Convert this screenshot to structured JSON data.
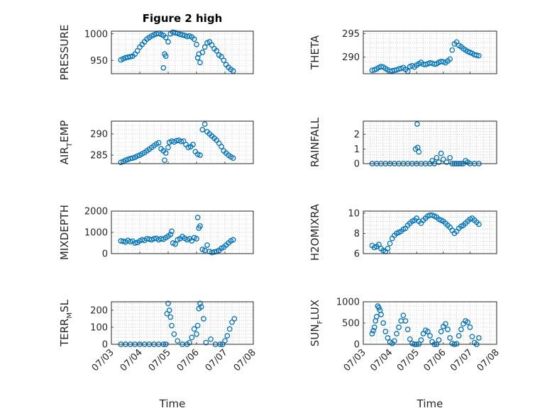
{
  "figure": {
    "title": "Figure 2 high",
    "marker_color": "#0072BD",
    "axis_color": "#262626",
    "grid_color": "#b0b0b0"
  },
  "chart_data": [
    {
      "type": "scatter",
      "marker": "open-circle",
      "ylabel": "PRESSURE",
      "xlim": [
        "07/03",
        "07/08"
      ],
      "ylim": [
        925,
        1005
      ],
      "yticks": [
        950,
        1000
      ],
      "grid": true,
      "minor_grid": true,
      "x": [
        "07/03 08:00",
        "07/03 10:00",
        "07/03 12:00",
        "07/03 14:00",
        "07/03 16:00",
        "07/03 18:00",
        "07/03 20:00",
        "07/03 22:00",
        "07/04 00:00",
        "07/04 02:00",
        "07/04 04:00",
        "07/04 06:00",
        "07/04 08:00",
        "07/04 10:00",
        "07/04 12:00",
        "07/04 14:00",
        "07/04 16:00",
        "07/04 18:00",
        "07/04 20:00",
        "07/04 22:00",
        "07/05 00:00",
        "07/04 20:00",
        "07/04 21:00",
        "07/04 22:00",
        "07/05 02:00",
        "07/05 04:00",
        "07/05 06:00",
        "07/05 08:00",
        "07/05 10:00",
        "07/05 12:00",
        "07/05 14:00",
        "07/05 16:00",
        "07/05 18:00",
        "07/05 20:00",
        "07/05 22:00",
        "07/06 00:00",
        "07/06 02:00",
        "07/06 01:00",
        "07/06 03:00",
        "07/06 05:00",
        "07/06 07:00",
        "07/06 09:00",
        "07/06 11:00",
        "07/06 13:00",
        "07/06 15:00",
        "07/06 17:00",
        "07/06 19:00",
        "07/06 21:00",
        "07/06 23:00",
        "07/07 01:00",
        "07/07 03:00",
        "07/07 05:00",
        "07/07 07:00"
      ],
      "y": [
        951,
        953,
        955,
        956,
        957,
        958,
        962,
        968,
        975,
        980,
        985,
        990,
        993,
        996,
        998,
        1000,
        1001,
        999,
        997,
        993,
        985,
        936,
        962,
        958,
        1000,
        1003,
        1002,
        1001,
        999,
        998,
        997,
        995,
        996,
        994,
        990,
        980,
        962,
        955,
        946,
        965,
        975,
        983,
        985,
        979,
        972,
        968,
        960,
        957,
        950,
        942,
        937,
        933,
        930
      ]
    },
    {
      "type": "scatter",
      "marker": "open-circle",
      "ylabel": "THETA",
      "xlim": [
        "07/03",
        "07/08"
      ],
      "ylim": [
        286.5,
        295.5
      ],
      "yticks": [
        290,
        295
      ],
      "grid": true,
      "minor_grid": true,
      "x": [
        "07/03 08:00",
        "07/03 10:00",
        "07/03 12:00",
        "07/03 14:00",
        "07/03 16:00",
        "07/03 18:00",
        "07/03 20:00",
        "07/03 22:00",
        "07/04 00:00",
        "07/04 02:00",
        "07/04 04:00",
        "07/04 06:00",
        "07/04 08:00",
        "07/04 10:00",
        "07/04 12:00",
        "07/04 14:00",
        "07/04 16:00",
        "07/04 18:00",
        "07/04 20:00",
        "07/04 22:00",
        "07/05 00:00",
        "07/05 02:00",
        "07/05 04:00",
        "07/05 06:00",
        "07/05 08:00",
        "07/05 10:00",
        "07/05 12:00",
        "07/05 14:00",
        "07/05 16:00",
        "07/05 18:00",
        "07/05 20:00",
        "07/05 22:00",
        "07/06 00:00",
        "07/06 02:00",
        "07/06 04:00",
        "07/06 06:00",
        "07/06 08:00",
        "07/06 10:00",
        "07/06 12:00",
        "07/06 14:00",
        "07/06 16:00",
        "07/06 18:00",
        "07/06 20:00",
        "07/06 22:00",
        "07/07 00:00",
        "07/07 02:00",
        "07/07 04:00",
        "07/07 06:00",
        "07/07 08:00"
      ],
      "y": [
        287.2,
        287.3,
        287.5,
        287.8,
        288.0,
        287.9,
        287.6,
        287.3,
        287.0,
        287.1,
        287.2,
        287.3,
        287.5,
        287.6,
        287.8,
        287.4,
        287.0,
        288.0,
        288.2,
        287.9,
        288.3,
        288.6,
        288.9,
        288.5,
        288.4,
        288.6,
        288.8,
        288.7,
        288.5,
        288.6,
        288.9,
        289.1,
        289.0,
        288.8,
        289.2,
        289.6,
        291.5,
        292.8,
        293.2,
        292.5,
        292.2,
        291.8,
        291.5,
        291.2,
        291.0,
        290.8,
        290.5,
        290.4,
        290.3
      ]
    },
    {
      "type": "scatter",
      "marker": "open-circle",
      "ylabel": "AIR_TEMP",
      "ylabel_display": [
        "AIR",
        "T",
        "EMP"
      ],
      "xlim": [
        "07/03",
        "07/08"
      ],
      "ylim": [
        283,
        293
      ],
      "yticks": [
        285,
        290
      ],
      "grid": true,
      "minor_grid": true,
      "x": [
        "07/03 08:00",
        "07/03 10:00",
        "07/03 12:00",
        "07/03 14:00",
        "07/03 16:00",
        "07/03 18:00",
        "07/03 20:00",
        "07/03 22:00",
        "07/04 00:00",
        "07/04 02:00",
        "07/04 04:00",
        "07/04 06:00",
        "07/04 08:00",
        "07/04 10:00",
        "07/04 12:00",
        "07/04 14:00",
        "07/04 16:00",
        "07/04 18:00",
        "07/04 20:00",
        "07/04 22:00",
        "07/05 00:00",
        "07/04 21:00",
        "07/05 01:00",
        "07/05 03:00",
        "07/05 05:00",
        "07/05 07:00",
        "07/05 09:00",
        "07/05 11:00",
        "07/05 13:00",
        "07/05 15:00",
        "07/05 17:00",
        "07/05 19:00",
        "07/05 21:00",
        "07/05 23:00",
        "07/06 01:00",
        "07/06 03:00",
        "07/06 05:00",
        "07/06 07:00",
        "07/06 09:00",
        "07/06 11:00",
        "07/06 13:00",
        "07/06 15:00",
        "07/06 17:00",
        "07/06 19:00",
        "07/06 21:00",
        "07/06 23:00",
        "07/07 01:00",
        "07/07 03:00",
        "07/07 05:00",
        "07/07 07:00"
      ],
      "y": [
        283.3,
        283.5,
        283.8,
        284.0,
        284.2,
        284.3,
        284.5,
        284.8,
        285.0,
        285.3,
        285.6,
        286.0,
        286.4,
        286.8,
        287.2,
        287.6,
        287.9,
        286.5,
        286.0,
        285.5,
        286.8,
        283.8,
        288.0,
        288.3,
        288.1,
        288.4,
        288.5,
        288.2,
        288.3,
        287.5,
        286.8,
        287.0,
        287.5,
        285.8,
        285.2,
        285.0,
        291.0,
        292.3,
        290.5,
        290.0,
        289.5,
        289.0,
        288.5,
        287.8,
        287.0,
        286.0,
        285.5,
        285.0,
        284.6,
        284.3
      ]
    },
    {
      "type": "scatter",
      "marker": "open-circle",
      "ylabel": "RAINFALL",
      "xlim": [
        "07/03",
        "07/08"
      ],
      "ylim": [
        0,
        2.9
      ],
      "yticks": [
        0,
        1,
        2
      ],
      "grid": true,
      "minor_grid": true,
      "x": [
        "07/03 08:00",
        "07/03 12:00",
        "07/03 16:00",
        "07/03 20:00",
        "07/04 00:00",
        "07/04 04:00",
        "07/04 08:00",
        "07/04 12:00",
        "07/04 16:00",
        "07/04 20:00",
        "07/05 00:00",
        "07/04 23:00",
        "07/05 01:00",
        "07/05 00:30",
        "07/05 02:00",
        "07/05 04:00",
        "07/05 08:00",
        "07/05 12:00",
        "07/05 14:00",
        "07/05 16:00",
        "07/05 18:00",
        "07/05 20:00",
        "07/05 22:00",
        "07/06 00:00",
        "07/06 03:00",
        "07/06 06:00",
        "07/06 08:00",
        "07/06 10:00",
        "07/06 12:00",
        "07/06 14:00",
        "07/06 16:00",
        "07/06 18:00",
        "07/06 20:00",
        "07/06 22:00",
        "07/07 00:00",
        "07/07 04:00",
        "07/07 08:00"
      ],
      "y": [
        0,
        0,
        0,
        0,
        0,
        0,
        0,
        0,
        0,
        0,
        0,
        1.0,
        1.1,
        2.7,
        0.8,
        0,
        0,
        0,
        0.2,
        0,
        0.4,
        0.1,
        0.7,
        0.3,
        0.1,
        0.4,
        0,
        0,
        0,
        0,
        0,
        0,
        0.2,
        0.1,
        0,
        0,
        0
      ]
    },
    {
      "type": "scatter",
      "marker": "open-circle",
      "ylabel": "MIXDEPTH",
      "xlim": [
        "07/03",
        "07/08"
      ],
      "ylim": [
        0,
        2000
      ],
      "yticks": [
        0,
        1000,
        2000
      ],
      "grid": true,
      "minor_grid": true,
      "x": [
        "07/03 08:00",
        "07/03 10:00",
        "07/03 12:00",
        "07/03 14:00",
        "07/03 16:00",
        "07/03 18:00",
        "07/03 20:00",
        "07/03 22:00",
        "07/04 00:00",
        "07/04 02:00",
        "07/04 04:00",
        "07/04 06:00",
        "07/04 08:00",
        "07/04 10:00",
        "07/04 12:00",
        "07/04 14:00",
        "07/04 16:00",
        "07/04 18:00",
        "07/04 20:00",
        "07/04 22:00",
        "07/05 00:00",
        "07/05 02:00",
        "07/05 03:00",
        "07/05 04:00",
        "07/05 06:00",
        "07/05 08:00",
        "07/05 10:00",
        "07/05 12:00",
        "07/05 14:00",
        "07/05 16:00",
        "07/05 18:00",
        "07/05 20:00",
        "07/05 22:00",
        "07/06 00:00",
        "07/06 01:00",
        "07/06 02:00",
        "07/06 03:00",
        "07/06 05:00",
        "07/06 07:00",
        "07/06 09:00",
        "07/06 11:00",
        "07/06 13:00",
        "07/06 15:00",
        "07/06 17:00",
        "07/06 19:00",
        "07/06 21:00",
        "07/06 23:00",
        "07/07 01:00",
        "07/07 03:00",
        "07/07 05:00",
        "07/07 07:00"
      ],
      "y": [
        600,
        580,
        550,
        620,
        560,
        590,
        500,
        520,
        600,
        650,
        620,
        700,
        680,
        650,
        700,
        720,
        650,
        700,
        680,
        750,
        820,
        900,
        1050,
        500,
        450,
        650,
        700,
        800,
        720,
        650,
        700,
        600,
        750,
        700,
        1700,
        1200,
        1300,
        200,
        150,
        400,
        100,
        50,
        80,
        100,
        150,
        250,
        300,
        400,
        500,
        600,
        650
      ]
    },
    {
      "type": "scatter",
      "marker": "open-circle",
      "ylabel": "H2OMIXRA",
      "xlim": [
        "07/03",
        "07/08"
      ],
      "ylim": [
        6,
        10.2
      ],
      "yticks": [
        6,
        8,
        10
      ],
      "grid": true,
      "minor_grid": true,
      "x": [
        "07/03 08:00",
        "07/03 10:00",
        "07/03 12:00",
        "07/03 14:00",
        "07/03 16:00",
        "07/03 18:00",
        "07/03 20:00",
        "07/03 22:00",
        "07/04 00:00",
        "07/04 02:00",
        "07/04 04:00",
        "07/04 06:00",
        "07/04 08:00",
        "07/04 10:00",
        "07/04 12:00",
        "07/04 14:00",
        "07/04 16:00",
        "07/04 18:00",
        "07/04 20:00",
        "07/04 22:00",
        "07/05 00:00",
        "07/05 02:00",
        "07/05 04:00",
        "07/05 06:00",
        "07/05 08:00",
        "07/05 10:00",
        "07/05 12:00",
        "07/05 14:00",
        "07/05 16:00",
        "07/05 18:00",
        "07/05 20:00",
        "07/05 22:00",
        "07/06 00:00",
        "07/06 02:00",
        "07/06 04:00",
        "07/06 06:00",
        "07/06 08:00",
        "07/06 10:00",
        "07/06 12:00",
        "07/06 14:00",
        "07/06 16:00",
        "07/06 18:00",
        "07/06 20:00",
        "07/06 22:00",
        "07/07 00:00",
        "07/07 02:00",
        "07/07 04:00",
        "07/07 06:00",
        "07/07 08:00"
      ],
      "y": [
        6.8,
        6.6,
        6.7,
        6.9,
        6.5,
        6.3,
        6.2,
        6.5,
        7.0,
        7.5,
        7.8,
        8.0,
        8.1,
        8.2,
        8.4,
        8.5,
        8.8,
        9.0,
        9.2,
        9.3,
        9.5,
        9.2,
        9.0,
        9.3,
        9.5,
        9.7,
        9.8,
        9.8,
        9.7,
        9.6,
        9.4,
        9.3,
        9.2,
        9.0,
        8.8,
        8.6,
        8.3,
        8.0,
        8.2,
        8.5,
        8.7,
        8.8,
        9.0,
        9.2,
        9.4,
        9.5,
        9.3,
        9.1,
        8.9
      ]
    },
    {
      "type": "scatter",
      "marker": "open-circle",
      "ylabel": "TERR_MSL",
      "ylabel_display": [
        "TERR",
        "M",
        "SL"
      ],
      "xlim": [
        "07/03",
        "07/08"
      ],
      "ylim": [
        0,
        250
      ],
      "yticks": [
        0,
        100,
        200
      ],
      "grid": true,
      "minor_grid": true,
      "xticks": [
        "07/03",
        "07/04",
        "07/05",
        "07/06",
        "07/07",
        "07/08"
      ],
      "xlabel": "Time",
      "x": [
        "07/03 08:00",
        "07/03 12:00",
        "07/03 16:00",
        "07/03 20:00",
        "07/04 00:00",
        "07/04 04:00",
        "07/04 08:00",
        "07/04 12:00",
        "07/04 16:00",
        "07/04 20:00",
        "07/04 22:00",
        "07/05 00:00",
        "07/04 23:00",
        "07/05 01:00",
        "07/05 02:00",
        "07/05 03:00",
        "07/05 05:00",
        "07/05 08:00",
        "07/05 12:00",
        "07/05 16:00",
        "07/05 18:00",
        "07/05 20:00",
        "07/05 22:00",
        "07/06 00:00",
        "07/06 01:00",
        "07/06 02:00",
        "07/06 03:00",
        "07/06 04:00",
        "07/06 06:00",
        "07/06 08:00",
        "07/06 12:00",
        "07/06 16:00",
        "07/06 20:00",
        "07/06 22:00",
        "07/07 00:00",
        "07/07 02:00",
        "07/07 04:00",
        "07/07 06:00",
        "07/07 08:00"
      ],
      "y": [
        0,
        0,
        0,
        0,
        0,
        0,
        0,
        0,
        0,
        0,
        0,
        240,
        180,
        200,
        160,
        110,
        60,
        20,
        0,
        0,
        10,
        40,
        90,
        60,
        110,
        210,
        240,
        220,
        150,
        10,
        30,
        0,
        0,
        0,
        20,
        50,
        90,
        130,
        150
      ]
    },
    {
      "type": "scatter",
      "marker": "open-circle",
      "ylabel": "SUN_FLUX",
      "ylabel_display": [
        "SUN",
        "F",
        "LUX"
      ],
      "xlim": [
        "07/03",
        "07/08"
      ],
      "ylim": [
        0,
        1000
      ],
      "yticks": [
        0,
        500,
        1000
      ],
      "grid": true,
      "minor_grid": true,
      "xticks": [
        "07/03",
        "07/04",
        "07/05",
        "07/06",
        "07/07",
        "07/08"
      ],
      "xlabel": "Time",
      "x": [
        "07/03 08:00",
        "07/03 09:00",
        "07/03 10:00",
        "07/03 11:00",
        "07/03 12:00",
        "07/03 13:00",
        "07/03 14:00",
        "07/03 15:00",
        "07/03 16:00",
        "07/03 18:00",
        "07/03 20:00",
        "07/03 22:00",
        "07/04 00:00",
        "07/04 02:00",
        "07/04 04:00",
        "07/04 06:00",
        "07/04 08:00",
        "07/04 10:00",
        "07/04 12:00",
        "07/04 14:00",
        "07/04 16:00",
        "07/04 18:00",
        "07/04 20:00",
        "07/04 22:00",
        "07/05 00:00",
        "07/05 02:00",
        "07/05 04:00",
        "07/05 06:00",
        "07/05 08:00",
        "07/05 10:00",
        "07/05 12:00",
        "07/05 14:00",
        "07/05 16:00",
        "07/05 18:00",
        "07/05 20:00",
        "07/05 22:00",
        "07/06 00:00",
        "07/06 02:00",
        "07/06 04:00",
        "07/06 06:00",
        "07/06 08:00",
        "07/06 10:00",
        "07/06 12:00",
        "07/06 14:00",
        "07/06 16:00",
        "07/06 18:00",
        "07/06 20:00",
        "07/06 22:00",
        "07/07 00:00",
        "07/07 02:00",
        "07/07 04:00",
        "07/07 06:00",
        "07/07 08:00"
      ],
      "y": [
        250,
        320,
        400,
        550,
        650,
        900,
        860,
        800,
        700,
        500,
        300,
        150,
        50,
        20,
        80,
        250,
        400,
        550,
        680,
        550,
        350,
        120,
        20,
        0,
        0,
        5,
        100,
        250,
        330,
        300,
        200,
        60,
        0,
        0,
        100,
        300,
        420,
        480,
        350,
        150,
        20,
        0,
        10,
        200,
        350,
        480,
        550,
        520,
        400,
        180,
        40,
        0,
        150
      ]
    }
  ]
}
